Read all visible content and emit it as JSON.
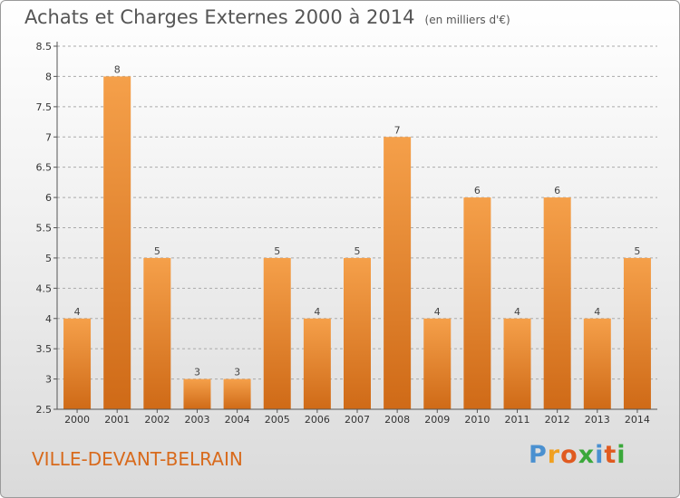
{
  "header": {
    "title": "Achats et Charges Externes 2000 à 2014",
    "unit": "(en milliers d'€)"
  },
  "footer": {
    "commune": "VILLE-DEVANT-BELRAIN",
    "logo_text": "Proxiti"
  },
  "colors": {
    "bar_light": "#f5a04a",
    "bar_dark": "#cf6a17",
    "grid": "#aaaaaa",
    "commune": "#d86a1c"
  },
  "chart_data": {
    "type": "bar",
    "title": "Achats et Charges Externes 2000 à 2014",
    "subtitle": "(en milliers d'€)",
    "xlabel": "",
    "ylabel": "",
    "categories": [
      "2000",
      "2001",
      "2002",
      "2003",
      "2004",
      "2005",
      "2006",
      "2007",
      "2008",
      "2009",
      "2010",
      "2011",
      "2012",
      "2013",
      "2014"
    ],
    "values": [
      4,
      8,
      5,
      3,
      3,
      5,
      4,
      5,
      7,
      4,
      6,
      4,
      6,
      4,
      5
    ],
    "ylim": [
      2.5,
      8.5
    ],
    "yticks": [
      "2.5",
      "3",
      "3.5",
      "4",
      "4.5",
      "5",
      "5.5",
      "6",
      "6.5",
      "7",
      "7.5",
      "8",
      "8.5"
    ],
    "grid": true,
    "legend": "none"
  }
}
